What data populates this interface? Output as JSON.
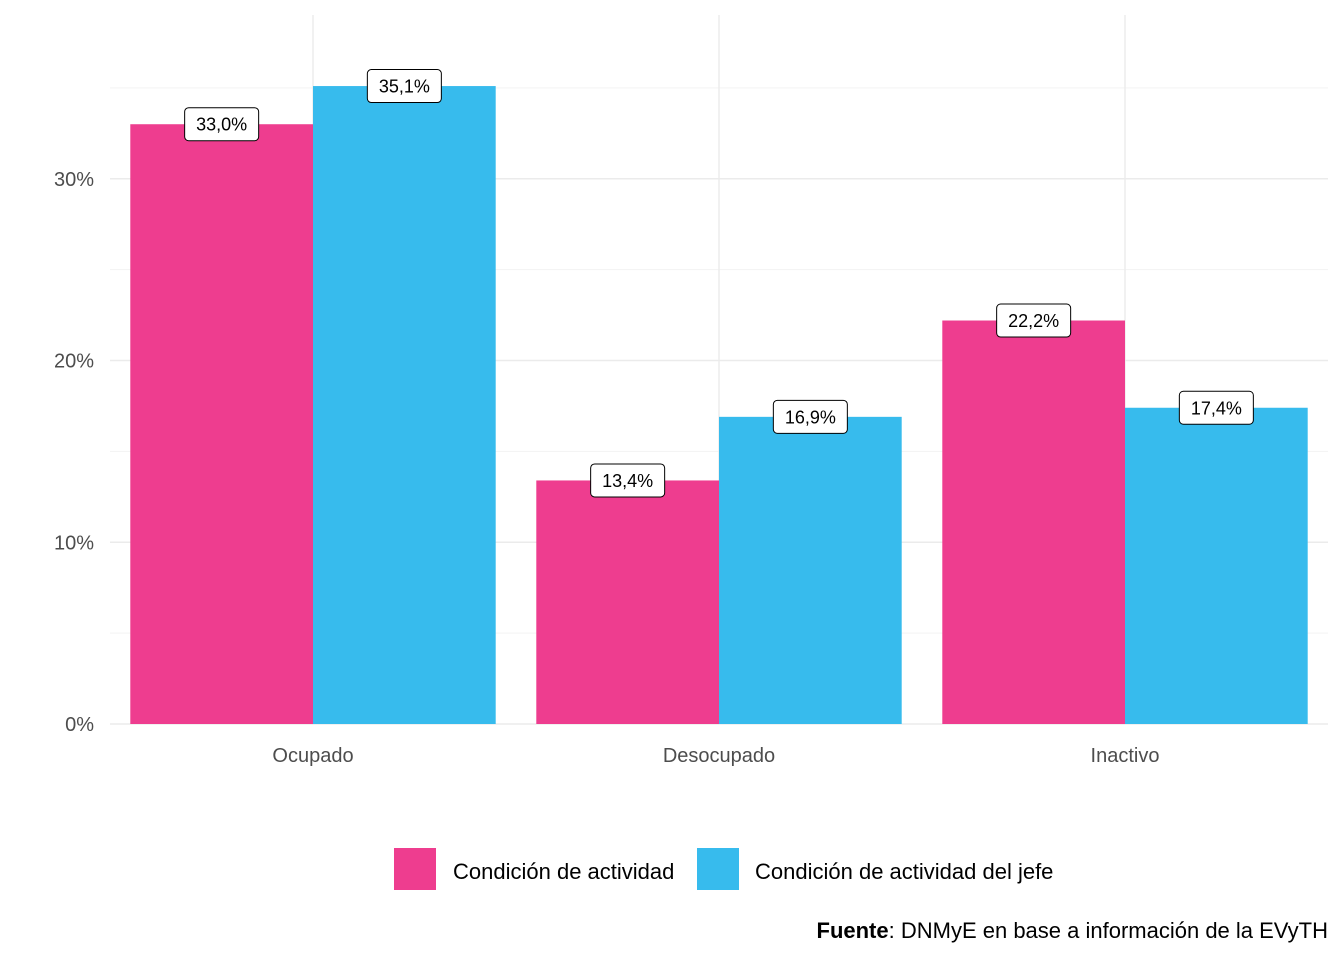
{
  "chart_data": {
    "type": "bar",
    "categories": [
      "Ocupado",
      "Desocupado",
      "Inactivo"
    ],
    "series": [
      {
        "name": "Condición de actividad",
        "values": [
          33.0,
          13.4,
          22.2
        ],
        "color": "#EE3D8F"
      },
      {
        "name": "Condición de actividad del jefe",
        "values": [
          35.1,
          16.9,
          17.4
        ],
        "color": "#37BBED"
      }
    ],
    "data_labels": [
      [
        "33,0%",
        "13,4%",
        "22,2%"
      ],
      [
        "35,1%",
        "16,9%",
        "17,4%"
      ]
    ],
    "ylim": [
      0,
      37.0
    ],
    "yticks": [
      0,
      10,
      20,
      30
    ],
    "ytick_labels": [
      "0%",
      "10%",
      "20%",
      "30%"
    ],
    "title": "",
    "xlabel": "",
    "ylabel": "",
    "legend_position": "bottom"
  },
  "caption": {
    "bold": "Fuente",
    "text": ": DNMyE en base a información de la EVyTH"
  }
}
